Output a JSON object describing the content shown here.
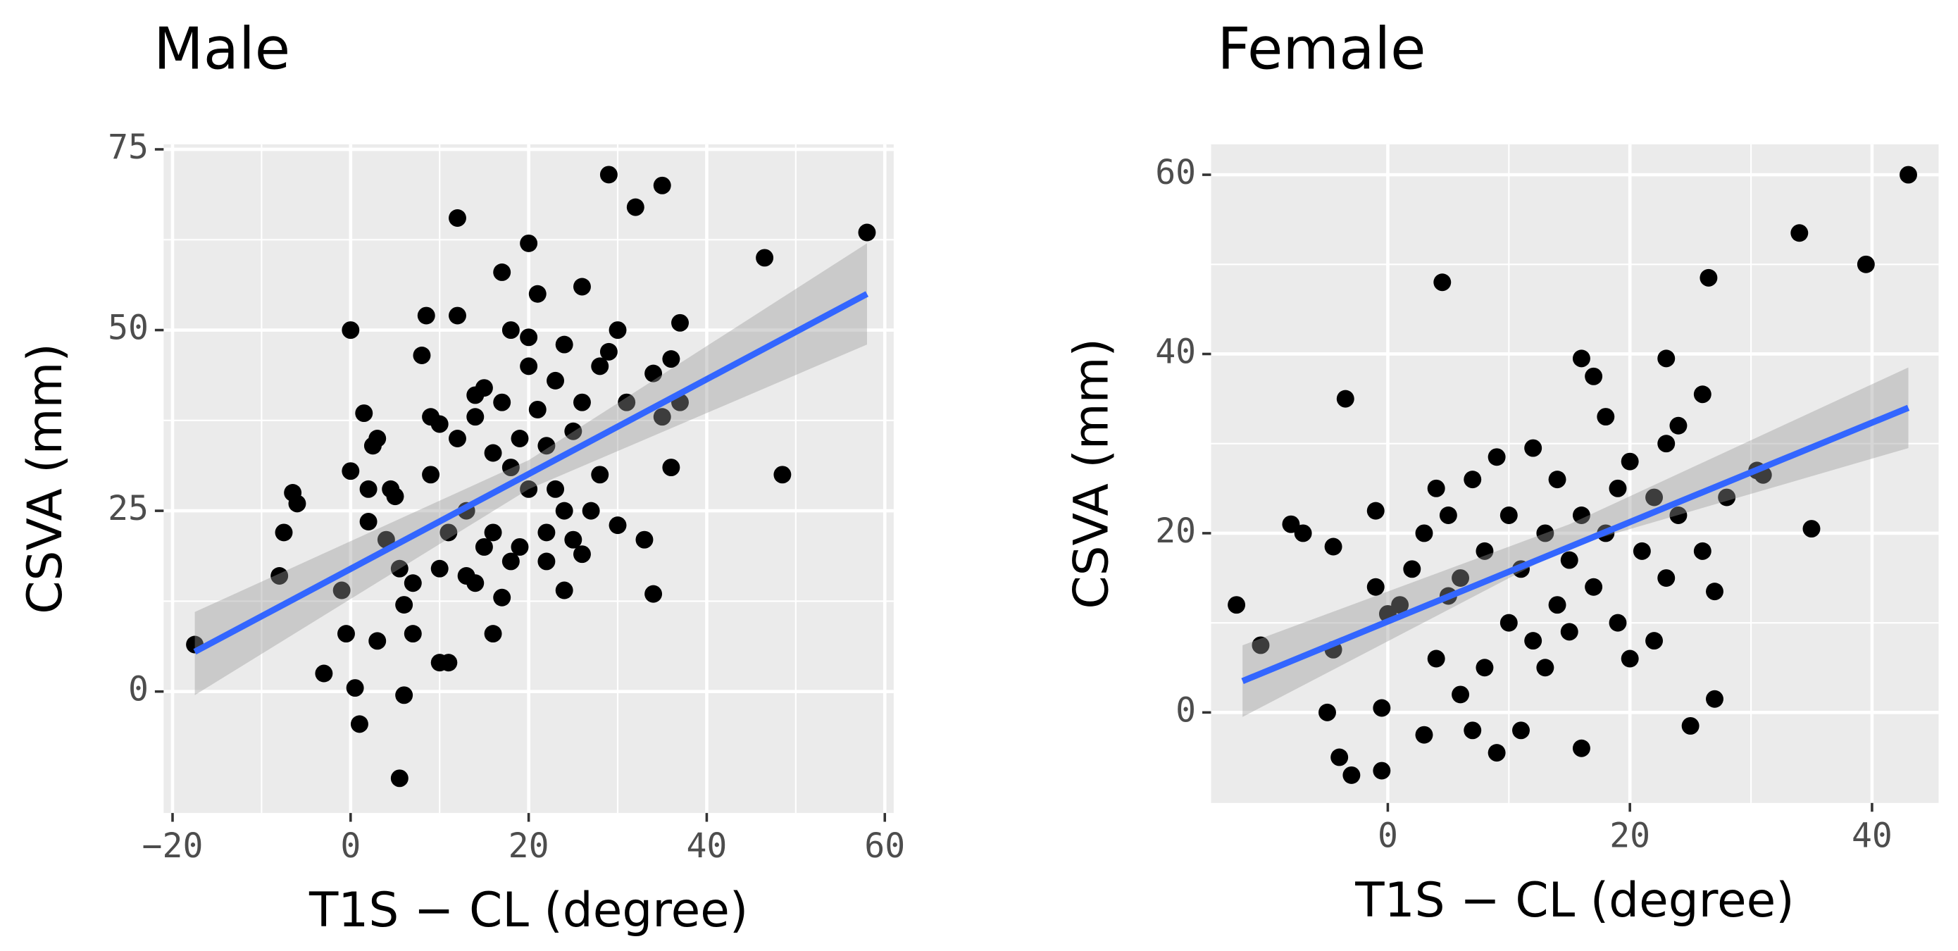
{
  "chart_data": [
    {
      "type": "scatter",
      "title": "Male",
      "x_label": "T1S − CL (degree)",
      "y_label": "CSVA (mm)",
      "xlim": [
        -21,
        61
      ],
      "ylim": [
        -16.8,
        75.7
      ],
      "xticks": [
        {
          "value": -20,
          "label": "−20"
        },
        0,
        20,
        40,
        60
      ],
      "yticks": [
        0,
        25,
        50,
        75
      ],
      "grid": true,
      "point_color": "#000000",
      "fit_color": "#3366ff",
      "band_color": "#999999",
      "x": [
        -17.5,
        -8,
        -7.5,
        -6.5,
        -6,
        -3,
        -1,
        -0.5,
        0,
        0,
        0.5,
        1,
        1.5,
        2,
        2,
        2.5,
        3,
        3,
        4,
        4.5,
        5,
        5.5,
        5.5,
        6,
        6,
        7,
        7,
        8,
        8.5,
        9,
        9,
        10,
        10,
        11,
        11,
        12,
        12,
        12,
        13,
        13,
        14,
        14,
        15,
        15,
        16,
        16,
        17,
        17,
        17,
        18,
        18,
        19,
        19,
        20,
        20,
        20,
        21,
        21,
        22,
        22,
        23,
        23,
        24,
        24,
        25,
        25,
        26,
        26,
        27,
        28,
        28,
        29,
        29,
        30,
        30,
        31,
        32,
        33,
        34,
        34,
        35,
        35,
        36,
        36,
        37,
        37,
        46.5,
        48.5,
        58,
        10,
        14,
        18,
        22,
        24,
        26,
        20,
        16
      ],
      "y": [
        6.5,
        16,
        22,
        27.5,
        26,
        2.5,
        14,
        8,
        30.5,
        50,
        0.5,
        -4.5,
        38.5,
        28,
        23.5,
        34,
        35,
        7,
        21,
        28,
        27,
        -12,
        17,
        -0.5,
        12,
        15,
        8,
        46.5,
        52,
        30,
        38,
        37,
        4,
        4,
        22,
        52,
        65.5,
        35,
        25,
        16,
        41,
        38,
        42,
        20,
        33,
        8,
        58,
        40,
        13,
        50,
        31,
        35,
        20,
        62,
        49,
        45,
        55,
        39,
        34,
        22,
        43,
        28,
        48,
        14,
        36,
        21,
        56,
        40,
        25,
        45,
        30,
        71.5,
        47,
        50,
        23,
        40,
        67,
        21,
        44,
        13.5,
        70,
        38,
        46,
        31,
        51,
        40,
        60,
        30,
        63.5,
        17,
        15,
        18,
        18,
        25,
        19,
        28,
        22
      ],
      "fit": {
        "x": [
          -17.5,
          58
        ],
        "y": [
          5.5,
          55
        ]
      },
      "band": {
        "x": [
          -17.5,
          20,
          58
        ],
        "lower": [
          -0.5,
          28,
          48
        ],
        "upper": [
          11,
          32,
          62
        ]
      }
    },
    {
      "type": "scatter",
      "title": "Female",
      "x_label": "T1S − CL (degree)",
      "y_label": "CSVA (mm)",
      "xlim": [
        -14.6,
        45.5
      ],
      "ylim": [
        -10.1,
        63.4
      ],
      "xticks": [
        0,
        20,
        40
      ],
      "yticks": [
        0,
        20,
        40,
        60
      ],
      "grid": true,
      "point_color": "#000000",
      "fit_color": "#3366ff",
      "band_color": "#999999",
      "x": [
        -12.5,
        -10.5,
        -8,
        -7,
        -5,
        -4.5,
        -4.5,
        -4,
        -3.5,
        -3,
        -1,
        -1,
        -0.5,
        -0.5,
        0,
        1,
        2,
        3,
        3,
        4,
        4,
        4.5,
        5,
        5,
        6,
        6,
        7,
        7,
        8,
        8,
        9,
        9,
        10,
        10,
        11,
        11,
        12,
        12,
        13,
        13,
        14,
        14,
        15,
        15,
        16,
        16,
        16,
        17,
        17,
        18,
        18,
        19,
        19,
        20,
        20,
        21,
        22,
        22,
        23,
        23,
        23,
        24,
        24,
        25,
        26,
        26,
        26.5,
        27,
        27,
        28,
        30.5,
        31,
        34,
        35,
        39.5,
        43
      ],
      "y": [
        12,
        7.5,
        21,
        20,
        0,
        18.5,
        7,
        -5,
        35,
        -7,
        14,
        22.5,
        -6.5,
        0.5,
        11,
        12,
        16,
        -2.5,
        20,
        6,
        25,
        48,
        13,
        22,
        2,
        15,
        -2,
        26,
        18,
        5,
        -4.5,
        28.5,
        10,
        22,
        -2,
        16,
        29.5,
        8,
        20,
        5,
        26,
        12,
        9,
        17,
        39.5,
        22,
        -4,
        37.5,
        14,
        33,
        20,
        25,
        10,
        6,
        28,
        18,
        24,
        8,
        39.5,
        30,
        15,
        32,
        22,
        -1.5,
        35.5,
        18,
        48.5,
        13.5,
        1.5,
        24,
        27,
        26.5,
        53.5,
        20.5,
        50,
        60
      ],
      "fit": {
        "x": [
          -12,
          43
        ],
        "y": [
          3.5,
          34
        ]
      },
      "band": {
        "x": [
          -12,
          15,
          43
        ],
        "lower": [
          -0.5,
          18.5,
          29.5
        ],
        "upper": [
          7.5,
          21,
          38.5
        ]
      }
    }
  ]
}
